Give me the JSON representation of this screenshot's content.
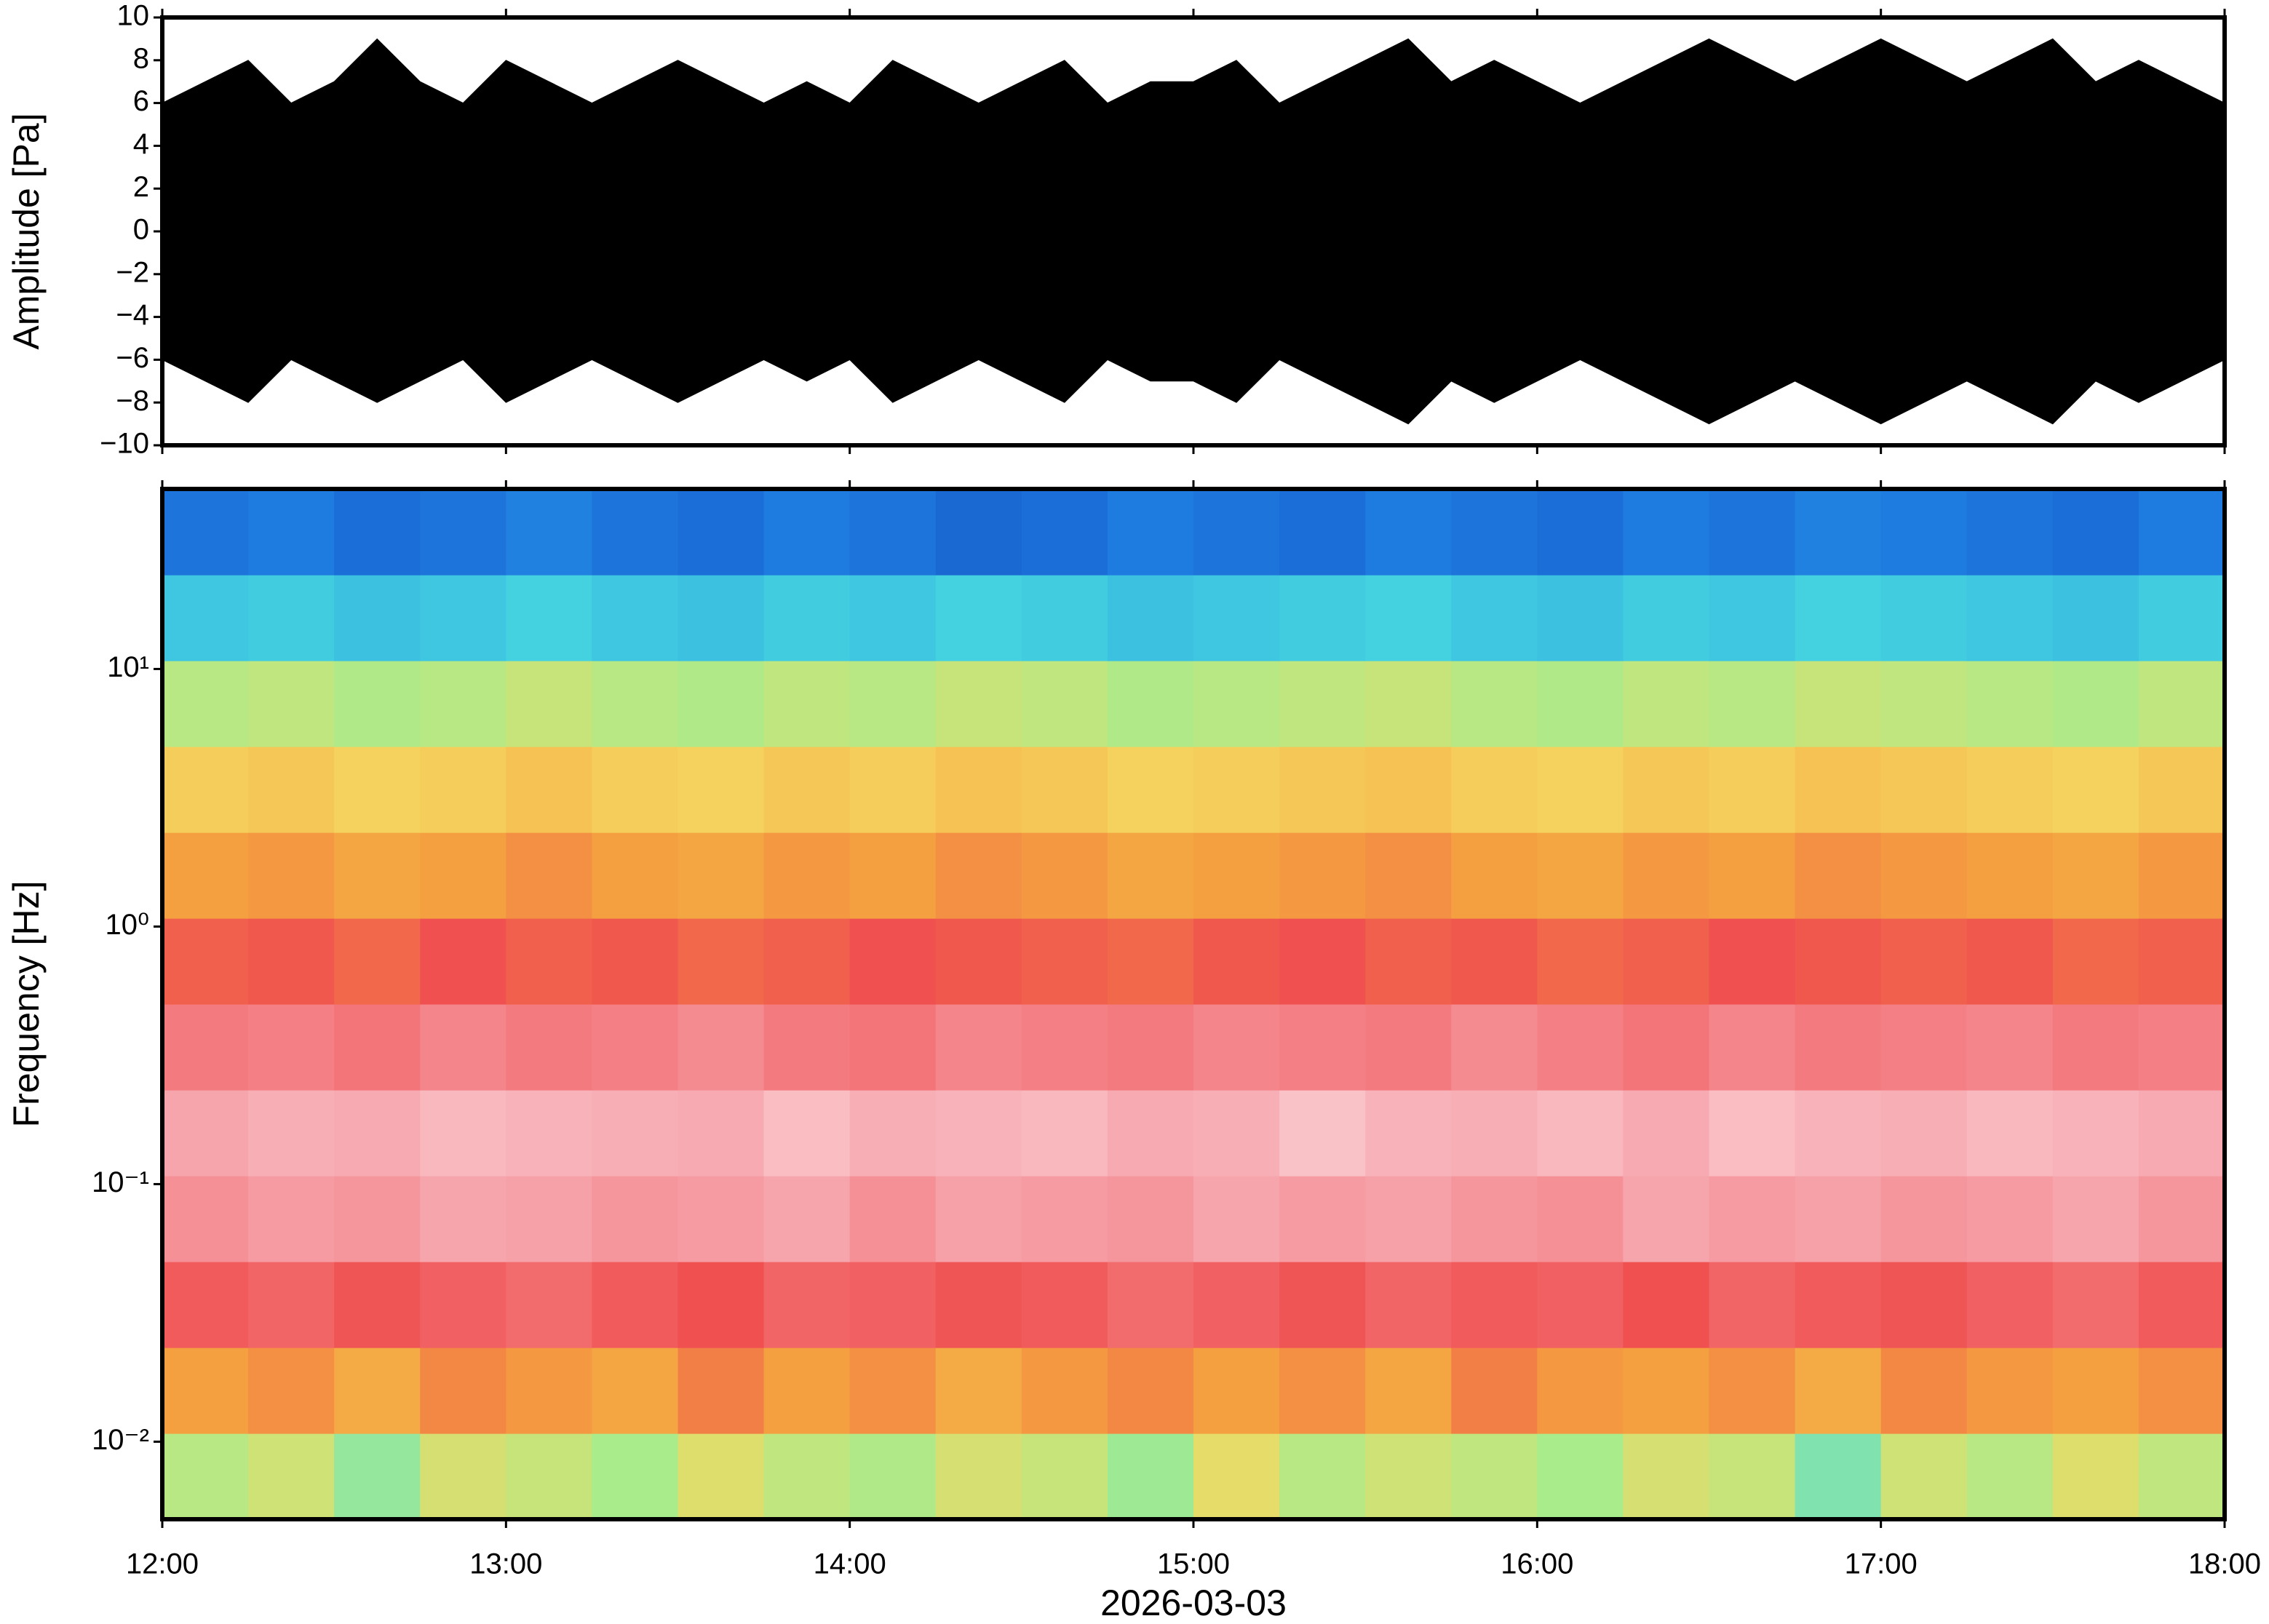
{
  "chart_data": [
    {
      "type": "envelope",
      "ylabel": "Amplitude [Pa]",
      "color": "#000000",
      "xlim": [
        12,
        18
      ],
      "xticks": [
        {
          "value": 12,
          "label": "12:00"
        },
        {
          "value": 13,
          "label": "13:00"
        },
        {
          "value": 14,
          "label": "14:00"
        },
        {
          "value": 15,
          "label": "15:00"
        },
        {
          "value": 16,
          "label": "16:00"
        },
        {
          "value": 17,
          "label": "17:00"
        },
        {
          "value": 18,
          "label": "18:00"
        }
      ],
      "ylim": [
        -10,
        10
      ],
      "yticks": [
        {
          "value": -10,
          "label": "−10"
        },
        {
          "value": -8,
          "label": "−8"
        },
        {
          "value": -6,
          "label": "−6"
        },
        {
          "value": -4,
          "label": "−4"
        },
        {
          "value": -2,
          "label": "−2"
        },
        0,
        2,
        4,
        6,
        8,
        10
      ],
      "x": [
        12,
        12.125,
        12.25,
        12.375,
        12.5,
        12.625,
        12.75,
        12.875,
        13,
        13.125,
        13.25,
        13.375,
        13.5,
        13.625,
        13.75,
        13.875,
        14,
        14.125,
        14.25,
        14.375,
        14.5,
        14.625,
        14.75,
        14.875,
        15,
        15.125,
        15.25,
        15.375,
        15.5,
        15.625,
        15.75,
        15.875,
        16,
        16.125,
        16.25,
        16.375,
        16.5,
        16.625,
        16.75,
        16.875,
        17,
        17.125,
        17.25,
        17.375,
        17.5,
        17.625,
        17.75,
        17.875,
        18
      ],
      "upper": [
        6,
        7,
        8,
        6,
        7,
        9,
        7,
        6,
        8,
        7,
        6,
        7,
        8,
        7,
        6,
        7,
        6,
        8,
        7,
        6,
        7,
        8,
        6,
        7,
        7,
        8,
        6,
        7,
        8,
        9,
        7,
        8,
        7,
        6,
        7,
        8,
        9,
        8,
        7,
        8,
        9,
        8,
        7,
        8,
        9,
        7,
        8,
        7,
        6
      ],
      "lower": [
        -6,
        -7,
        -8,
        -6,
        -7,
        -8,
        -7,
        -6,
        -8,
        -7,
        -6,
        -7,
        -8,
        -7,
        -6,
        -7,
        -6,
        -8,
        -7,
        -6,
        -7,
        -8,
        -6,
        -7,
        -7,
        -8,
        -6,
        -7,
        -8,
        -9,
        -7,
        -8,
        -7,
        -6,
        -7,
        -8,
        -9,
        -8,
        -7,
        -8,
        -9,
        -8,
        -7,
        -8,
        -9,
        -7,
        -8,
        -7,
        -6
      ]
    },
    {
      "type": "heatmap",
      "ylabel": "Frequency [Hz]",
      "xlabel": "2026-03-03",
      "ylog": true,
      "xlim": [
        12,
        18
      ],
      "xticks": [
        {
          "value": 12,
          "label": "12:00"
        },
        {
          "value": 13,
          "label": "13:00"
        },
        {
          "value": 14,
          "label": "14:00"
        },
        {
          "value": 15,
          "label": "15:00"
        },
        {
          "value": 16,
          "label": "16:00"
        },
        {
          "value": 17,
          "label": "17:00"
        },
        {
          "value": 18,
          "label": "18:00"
        }
      ],
      "ylim": [
        0.005,
        50
      ],
      "yticks": [
        {
          "value": 0.01,
          "label": "10⁻²"
        },
        {
          "value": 0.1,
          "label": "10⁻¹"
        },
        {
          "value": 1,
          "label": "10⁰"
        },
        {
          "value": 10,
          "label": "10¹"
        }
      ],
      "colorscale": [
        [
          0,
          "#0a1a9a"
        ],
        [
          0.15,
          "#1e7be0"
        ],
        [
          0.3,
          "#44d2e0"
        ],
        [
          0.4,
          "#a8ec8c"
        ],
        [
          0.5,
          "#f5d860"
        ],
        [
          0.6,
          "#f4a040"
        ],
        [
          0.7,
          "#f05050"
        ],
        [
          0.85,
          "#f6a0a8"
        ],
        [
          1,
          "#fde8ea"
        ]
      ],
      "xbins": [
        12,
        12.25,
        12.5,
        12.75,
        13,
        13.25,
        13.5,
        13.75,
        14,
        14.25,
        14.5,
        14.75,
        15,
        15.25,
        15.5,
        15.75,
        16,
        16.25,
        16.5,
        16.75,
        17,
        17.25,
        17.5,
        17.75,
        18
      ],
      "ybins": [
        0.005,
        0.01077,
        0.0232,
        0.05,
        0.1077,
        0.232,
        0.5,
        1.077,
        2.32,
        5,
        10.77,
        23.2,
        50
      ],
      "z": [
        [
          0.42,
          0.45,
          0.38,
          0.46,
          0.44,
          0.4,
          0.47,
          0.43,
          0.41,
          0.46,
          0.44,
          0.39,
          0.48,
          0.42,
          0.45,
          0.43,
          0.4,
          0.46,
          0.44,
          0.36,
          0.45,
          0.42,
          0.47,
          0.43
        ],
        [
          0.6,
          0.62,
          0.58,
          0.63,
          0.61,
          0.59,
          0.64,
          0.6,
          0.62,
          0.58,
          0.61,
          0.63,
          0.6,
          0.62,
          0.59,
          0.64,
          0.61,
          0.6,
          0.62,
          0.58,
          0.63,
          0.61,
          0.6,
          0.62
        ],
        [
          0.72,
          0.74,
          0.71,
          0.73,
          0.75,
          0.72,
          0.7,
          0.74,
          0.73,
          0.71,
          0.72,
          0.75,
          0.73,
          0.71,
          0.74,
          0.72,
          0.73,
          0.7,
          0.74,
          0.72,
          0.71,
          0.73,
          0.75,
          0.72
        ],
        [
          0.82,
          0.84,
          0.83,
          0.86,
          0.85,
          0.83,
          0.84,
          0.86,
          0.82,
          0.85,
          0.84,
          0.83,
          0.86,
          0.84,
          0.85,
          0.83,
          0.82,
          0.86,
          0.84,
          0.85,
          0.83,
          0.84,
          0.86,
          0.83
        ],
        [
          0.86,
          0.88,
          0.87,
          0.9,
          0.89,
          0.88,
          0.87,
          0.91,
          0.88,
          0.89,
          0.9,
          0.87,
          0.88,
          0.92,
          0.89,
          0.88,
          0.9,
          0.87,
          0.91,
          0.89,
          0.88,
          0.9,
          0.89,
          0.87
        ],
        [
          0.78,
          0.79,
          0.77,
          0.8,
          0.78,
          0.79,
          0.81,
          0.78,
          0.77,
          0.8,
          0.79,
          0.78,
          0.8,
          0.79,
          0.78,
          0.81,
          0.79,
          0.77,
          0.8,
          0.78,
          0.79,
          0.8,
          0.78,
          0.79
        ],
        [
          0.68,
          0.69,
          0.67,
          0.7,
          0.68,
          0.69,
          0.67,
          0.68,
          0.7,
          0.69,
          0.68,
          0.67,
          0.69,
          0.7,
          0.68,
          0.69,
          0.67,
          0.68,
          0.7,
          0.69,
          0.68,
          0.69,
          0.67,
          0.68
        ],
        [
          0.6,
          0.61,
          0.59,
          0.6,
          0.62,
          0.6,
          0.59,
          0.61,
          0.6,
          0.62,
          0.61,
          0.59,
          0.6,
          0.61,
          0.62,
          0.6,
          0.59,
          0.61,
          0.6,
          0.62,
          0.61,
          0.6,
          0.59,
          0.61
        ],
        [
          0.52,
          0.53,
          0.51,
          0.52,
          0.54,
          0.52,
          0.51,
          0.53,
          0.52,
          0.54,
          0.53,
          0.51,
          0.52,
          0.53,
          0.54,
          0.52,
          0.51,
          0.53,
          0.52,
          0.54,
          0.53,
          0.52,
          0.51,
          0.53
        ],
        [
          0.42,
          0.43,
          0.41,
          0.42,
          0.44,
          0.42,
          0.41,
          0.43,
          0.42,
          0.44,
          0.43,
          0.41,
          0.42,
          0.43,
          0.44,
          0.42,
          0.41,
          0.43,
          0.42,
          0.44,
          0.43,
          0.42,
          0.41,
          0.43
        ],
        [
          0.28,
          0.29,
          0.27,
          0.28,
          0.3,
          0.28,
          0.27,
          0.29,
          0.28,
          0.3,
          0.29,
          0.27,
          0.28,
          0.29,
          0.3,
          0.28,
          0.27,
          0.29,
          0.28,
          0.3,
          0.29,
          0.28,
          0.27,
          0.29
        ],
        [
          0.14,
          0.15,
          0.13,
          0.14,
          0.16,
          0.14,
          0.13,
          0.15,
          0.14,
          0.12,
          0.13,
          0.15,
          0.14,
          0.13,
          0.15,
          0.14,
          0.13,
          0.15,
          0.14,
          0.16,
          0.15,
          0.14,
          0.13,
          0.15
        ]
      ]
    }
  ]
}
